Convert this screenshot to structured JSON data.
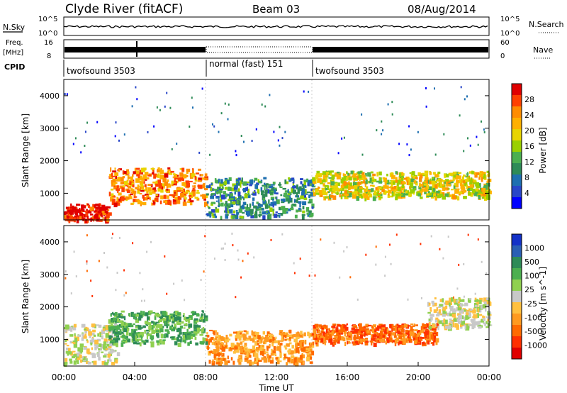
{
  "header": {
    "station": "Clyde River (fitACF)",
    "beam": "Beam 03",
    "date": "08/Aug/2014"
  },
  "top_panels": {
    "nsky_label": "N.Sky",
    "nsearch_label": "N.Search",
    "freq_label_1": "Freq.",
    "freq_label_2": "[MHz]",
    "nave_label": "Nave",
    "cpid_label": "CPID",
    "left_ticks_noise": [
      "10^5",
      "10^0"
    ],
    "right_ticks_noise": [
      "10^5",
      "10^0"
    ],
    "left_ticks_freq": [
      "16",
      "8"
    ],
    "right_ticks_nave": [
      "60",
      "0"
    ],
    "cpid_segments": [
      {
        "label": "twofsound 3503",
        "start_h": 0,
        "end_h": 8
      },
      {
        "label": "normal (fast) 151",
        "start_h": 8,
        "end_h": 14
      },
      {
        "label": "twofsound 3503",
        "start_h": 14,
        "end_h": 24
      }
    ]
  },
  "chart_data": [
    {
      "type": "heatmap",
      "panel": "power",
      "ylabel": "Slant Range [km]",
      "xlabel": "",
      "xlim": [
        0,
        24
      ],
      "ylim": [
        180,
        4500
      ],
      "yticks": [
        1000,
        2000,
        3000,
        4000
      ],
      "colorbar": {
        "label": "Power [dB]",
        "ticks": [
          "28",
          "24",
          "20",
          "16",
          "12",
          "8",
          "4"
        ],
        "colors": [
          "#e00000",
          "#ff4000",
          "#ff8c00",
          "#ffb000",
          "#e8d400",
          "#9ad000",
          "#4caf50",
          "#2e8b57",
          "#1e6fb0",
          "#2846c8",
          "#0000ff"
        ]
      },
      "features": [
        {
          "desc_h": [
            0.0,
            2.5
          ],
          "range_km": [
            200,
            700
          ],
          "level_db": 28
        },
        {
          "desc_h": [
            2.5,
            8.0
          ],
          "range_km": [
            700,
            1800
          ],
          "level_db": 22
        },
        {
          "desc_h": [
            8.0,
            14.0
          ],
          "range_km": [
            300,
            1500
          ],
          "level_db": 8
        },
        {
          "desc_h": [
            14.0,
            24.0
          ],
          "range_km": [
            900,
            1700
          ],
          "level_db": 16
        }
      ]
    },
    {
      "type": "heatmap",
      "panel": "velocity",
      "ylabel": "Slant Range [km]",
      "xlabel": "Time UT",
      "xlim": [
        0,
        24
      ],
      "ylim": [
        180,
        4500
      ],
      "xticks": [
        "00:00",
        "04:00",
        "08:00",
        "12:00",
        "16:00",
        "20:00",
        "00:00"
      ],
      "yticks": [
        1000,
        2000,
        3000,
        4000
      ],
      "colorbar": {
        "label": "Velocity [m s^-1]",
        "ticks": [
          "1000",
          "500",
          "100",
          "25",
          "-25",
          "-100",
          "-500",
          "-1000"
        ],
        "colors": [
          "#1432c8",
          "#2a5fb4",
          "#2e8b57",
          "#4caf50",
          "#90d050",
          "#c8c8c8",
          "#ffc040",
          "#ff9a20",
          "#ff6a00",
          "#ff3000",
          "#e00000"
        ]
      },
      "features": [
        {
          "desc_h": [
            0.0,
            3.0
          ],
          "range_km": [
            300,
            1500
          ],
          "velocity_ms": 0
        },
        {
          "desc_h": [
            2.5,
            8.0
          ],
          "range_km": [
            900,
            1900
          ],
          "velocity_ms": 300
        },
        {
          "desc_h": [
            8.0,
            14.0
          ],
          "range_km": [
            300,
            1300
          ],
          "velocity_ms": -300
        },
        {
          "desc_h": [
            14.0,
            21.0
          ],
          "range_km": [
            900,
            1500
          ],
          "velocity_ms": -600
        },
        {
          "desc_h": [
            20.5,
            24.0
          ],
          "range_km": [
            1400,
            2300
          ],
          "velocity_ms": 0
        }
      ]
    }
  ]
}
